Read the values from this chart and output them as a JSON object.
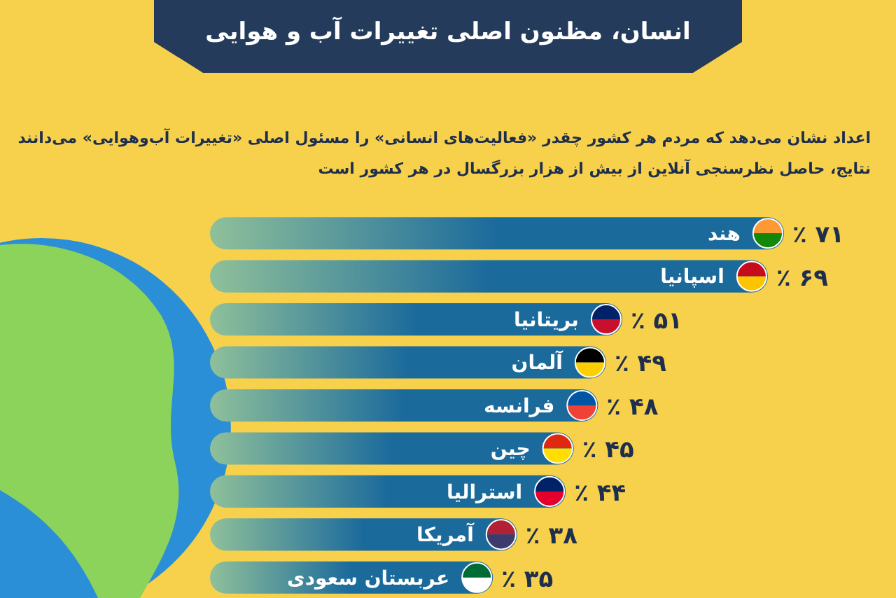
{
  "chart_data": {
    "type": "bar",
    "orientation": "horizontal",
    "title": "انسان، مظنون اصلی تغییرات آب و هوایی",
    "subtitle": "اعداد نشان می‌دهد که مردم هر کشور چقدر «فعالیت‌های انسانی» را مسئول اصلی «تغییرات آب‌وهوایی» می‌دانند",
    "annotations": [
      "نتایج، حاصل نظرسنجی آنلاین از بیش از هزار بزرگسال در هر کشور است"
    ],
    "categories": [
      "هند",
      "اسپانیا",
      "بریتانیا",
      "آلمان",
      "فرانسه",
      "چین",
      "استرالیا",
      "آمریکا",
      "عربستان سعودی"
    ],
    "values": [
      71,
      69,
      51,
      49,
      48,
      45,
      44,
      38,
      35
    ],
    "value_labels": [
      "٪ ۷۱",
      "٪ ۶۹",
      "٪ ۵۱",
      "٪ ۴۹",
      "٪ ۴۸",
      "٪ ۴۵",
      "٪ ۴۴",
      "٪ ۳۸",
      "٪ ۳۵"
    ],
    "color": "#1b6a9c"
  }
}
